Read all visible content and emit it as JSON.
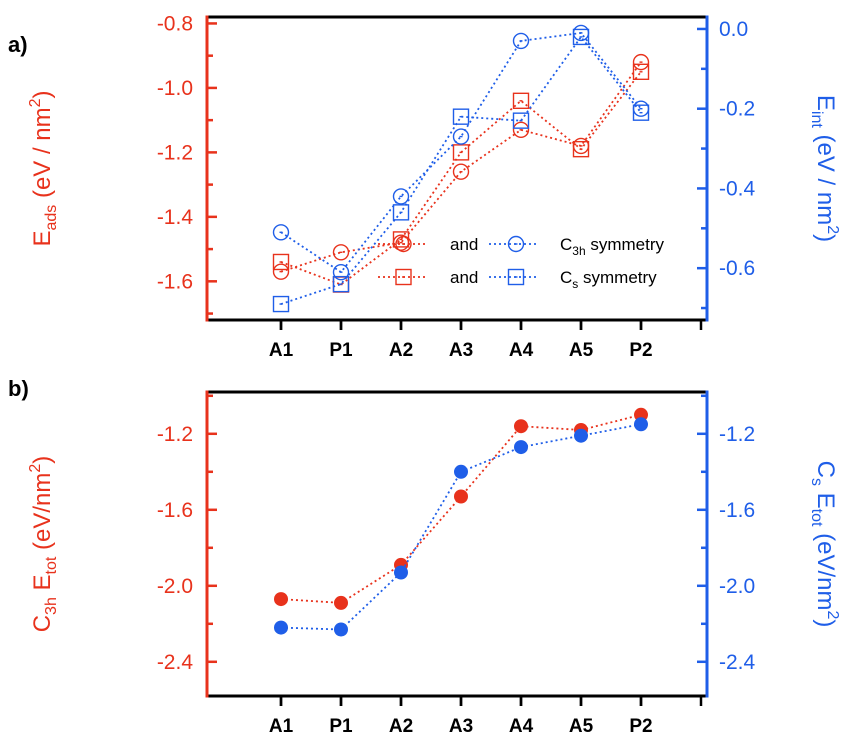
{
  "colors": {
    "red": "#e8321c",
    "blue": "#1f5ee8",
    "black": "#000000"
  },
  "chart_data": [
    {
      "panel": "a)",
      "type": "line",
      "categories": [
        "A1",
        "P1",
        "A2",
        "A3",
        "A4",
        "A5",
        "P2"
      ],
      "left_axis": {
        "label_main": "E",
        "label_sub": "ads",
        "label_rest": " (eV / nm",
        "label_sup": "2",
        "label_end": ")",
        "ylim": [
          -1.72,
          -0.78
        ],
        "ticks": [
          "-0.8",
          "-1.0",
          "-1.2",
          "-1.4",
          "-1.6"
        ],
        "tick_values": [
          -0.8,
          -1.0,
          -1.2,
          -1.4,
          -1.6
        ]
      },
      "right_axis": {
        "label_main": "E",
        "label_sub": "int",
        "label_rest": " (eV / nm",
        "label_sup": "2",
        "label_end": ")",
        "ylim": [
          -0.73,
          0.03
        ],
        "ticks": [
          "0.0",
          "-0.2",
          "-0.4",
          "-0.6"
        ],
        "tick_values": [
          0.0,
          -0.2,
          -0.4,
          -0.6
        ]
      },
      "series": [
        {
          "axis": "left",
          "color": "red",
          "marker": "circle",
          "values": [
            -1.57,
            -1.51,
            -1.48,
            -1.26,
            -1.13,
            -1.18,
            -0.92
          ]
        },
        {
          "axis": "left",
          "color": "red",
          "marker": "square",
          "values": [
            -1.54,
            -1.61,
            -1.47,
            -1.2,
            -1.04,
            -1.19,
            -0.95
          ]
        },
        {
          "axis": "right",
          "color": "blue",
          "marker": "circle",
          "values": [
            -0.51,
            -0.61,
            -0.42,
            -0.27,
            -0.03,
            -0.01,
            -0.2
          ]
        },
        {
          "axis": "right",
          "color": "blue",
          "marker": "square",
          "values": [
            -0.69,
            -0.64,
            -0.46,
            -0.22,
            -0.23,
            -0.02,
            -0.21
          ]
        }
      ],
      "legend": [
        {
          "text": "and",
          "color": "red",
          "marker": "circle"
        },
        {
          "text": "and",
          "color": "red",
          "marker": "square"
        },
        {
          "text_main": "C",
          "text_sub": "3h",
          "text_rest": " symmetry",
          "color": "blue",
          "marker": "circle"
        },
        {
          "text_main": "C",
          "text_sub": "s",
          "text_rest": " symmetry",
          "color": "blue",
          "marker": "square"
        }
      ]
    },
    {
      "panel": "b)",
      "type": "line",
      "categories": [
        "A1",
        "P1",
        "A2",
        "A3",
        "A4",
        "A5",
        "P2"
      ],
      "left_axis": {
        "label_main": "C",
        "label_sub": "3h",
        "label_mid": " E",
        "label_sub2": "tot",
        "label_rest": " (eV/nm",
        "label_sup": "2",
        "label_end": ")",
        "ylim": [
          -2.58,
          -0.98
        ],
        "ticks": [
          "-1.2",
          "-1.6",
          "-2.0",
          "-2.4"
        ],
        "tick_values": [
          -1.2,
          -1.6,
          -2.0,
          -2.4
        ]
      },
      "right_axis": {
        "label_main": "C",
        "label_sub": "s",
        "label_mid": " E",
        "label_sub2": "tot",
        "label_rest": " (eV/nm",
        "label_sup": "2",
        "label_end": ")",
        "ylim": [
          -2.58,
          -0.98
        ],
        "ticks": [
          "-1.2",
          "-1.6",
          "-2.0",
          "-2.4"
        ],
        "tick_values": [
          -1.2,
          -1.6,
          -2.0,
          -2.4
        ]
      },
      "series": [
        {
          "axis": "left",
          "color": "red",
          "marker": "filled-circle",
          "values": [
            -2.07,
            -2.09,
            -1.89,
            -1.53,
            -1.16,
            -1.18,
            -1.1
          ]
        },
        {
          "axis": "right",
          "color": "blue",
          "marker": "filled-circle",
          "values": [
            -2.22,
            -2.23,
            -1.93,
            -1.4,
            -1.27,
            -1.21,
            -1.15
          ]
        }
      ]
    }
  ]
}
